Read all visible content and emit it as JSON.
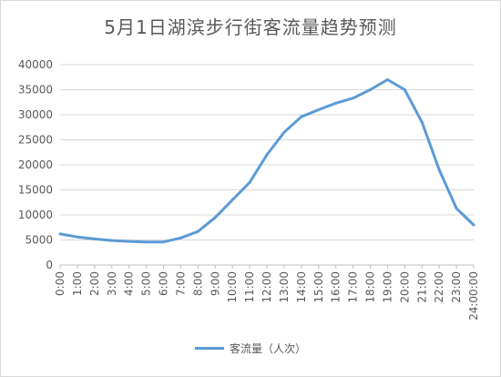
{
  "chart_data": {
    "type": "line",
    "title": "5月1日湖滨步行街客流量趋势预测",
    "xlabel": "",
    "ylabel": "",
    "x": [
      "0:00",
      "1:00",
      "2:00",
      "3:00",
      "4:00",
      "5:00",
      "6:00",
      "7:00",
      "8:00",
      "9:00",
      "10:00",
      "11:00",
      "12:00",
      "13:00",
      "14:00",
      "15:00",
      "16:00",
      "17:00",
      "18:00",
      "19:00",
      "20:00",
      "21:00",
      "22:00",
      "23:00",
      "24:00:00"
    ],
    "ylim": [
      0,
      40000
    ],
    "yticks": [
      0,
      5000,
      10000,
      15000,
      20000,
      25000,
      30000,
      35000,
      40000
    ],
    "grid": true,
    "legend_position": "bottom",
    "series": [
      {
        "name": "客流量（人次）",
        "color": "#5b9bd5",
        "values": [
          6200,
          5600,
          5200,
          4900,
          4700,
          4600,
          4600,
          5400,
          6700,
          9500,
          13000,
          16500,
          22000,
          26500,
          29600,
          31000,
          32300,
          33300,
          35000,
          37000,
          35000,
          28500,
          19000,
          11300,
          8000
        ]
      }
    ]
  }
}
